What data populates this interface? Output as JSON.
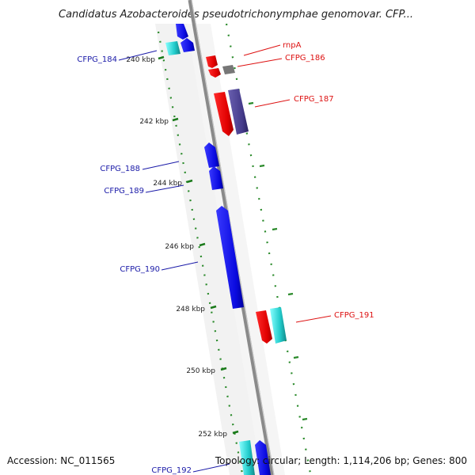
{
  "title": "Candidatus Azobacteroides pseudotrichonymphae genomovar. CFP...",
  "footer": {
    "accession": "Accession: NC_011565",
    "topology": "Topology: circular; Length: 1,114,206 bp; Genes: 800"
  },
  "ticks": [
    "240 kbp",
    "242 kbp",
    "244 kbp",
    "246 kbp",
    "248 kbp",
    "250 kbp",
    "252 kbp"
  ],
  "genes": [
    {
      "label": "rnpA",
      "side": "right",
      "color": "#dd1111"
    },
    {
      "label": "CFPG_186",
      "side": "right",
      "color": "#dd1111"
    },
    {
      "label": "CFPG_187",
      "side": "right",
      "color": "#dd1111"
    },
    {
      "label": "CFPG_191",
      "side": "right",
      "color": "#dd1111"
    },
    {
      "label": "CFPG_184",
      "side": "left",
      "color": "#1a1aa8"
    },
    {
      "label": "CFPG_188",
      "side": "left",
      "color": "#1a1aa8"
    },
    {
      "label": "CFPG_189",
      "side": "left",
      "color": "#1a1aa8"
    },
    {
      "label": "CFPG_190",
      "side": "left",
      "color": "#1a1aa8"
    },
    {
      "label": "CFPG_192",
      "side": "left",
      "color": "#1a1aa8"
    }
  ],
  "colors": {
    "backbone": "#8a8a8a",
    "gc_dots": "#2a8a2a",
    "forward_cds": "#e01010",
    "reverse_cds": "#1010e8",
    "rna": "#30d0d0",
    "cog": "#4a3f8c",
    "misc": "#666666"
  }
}
